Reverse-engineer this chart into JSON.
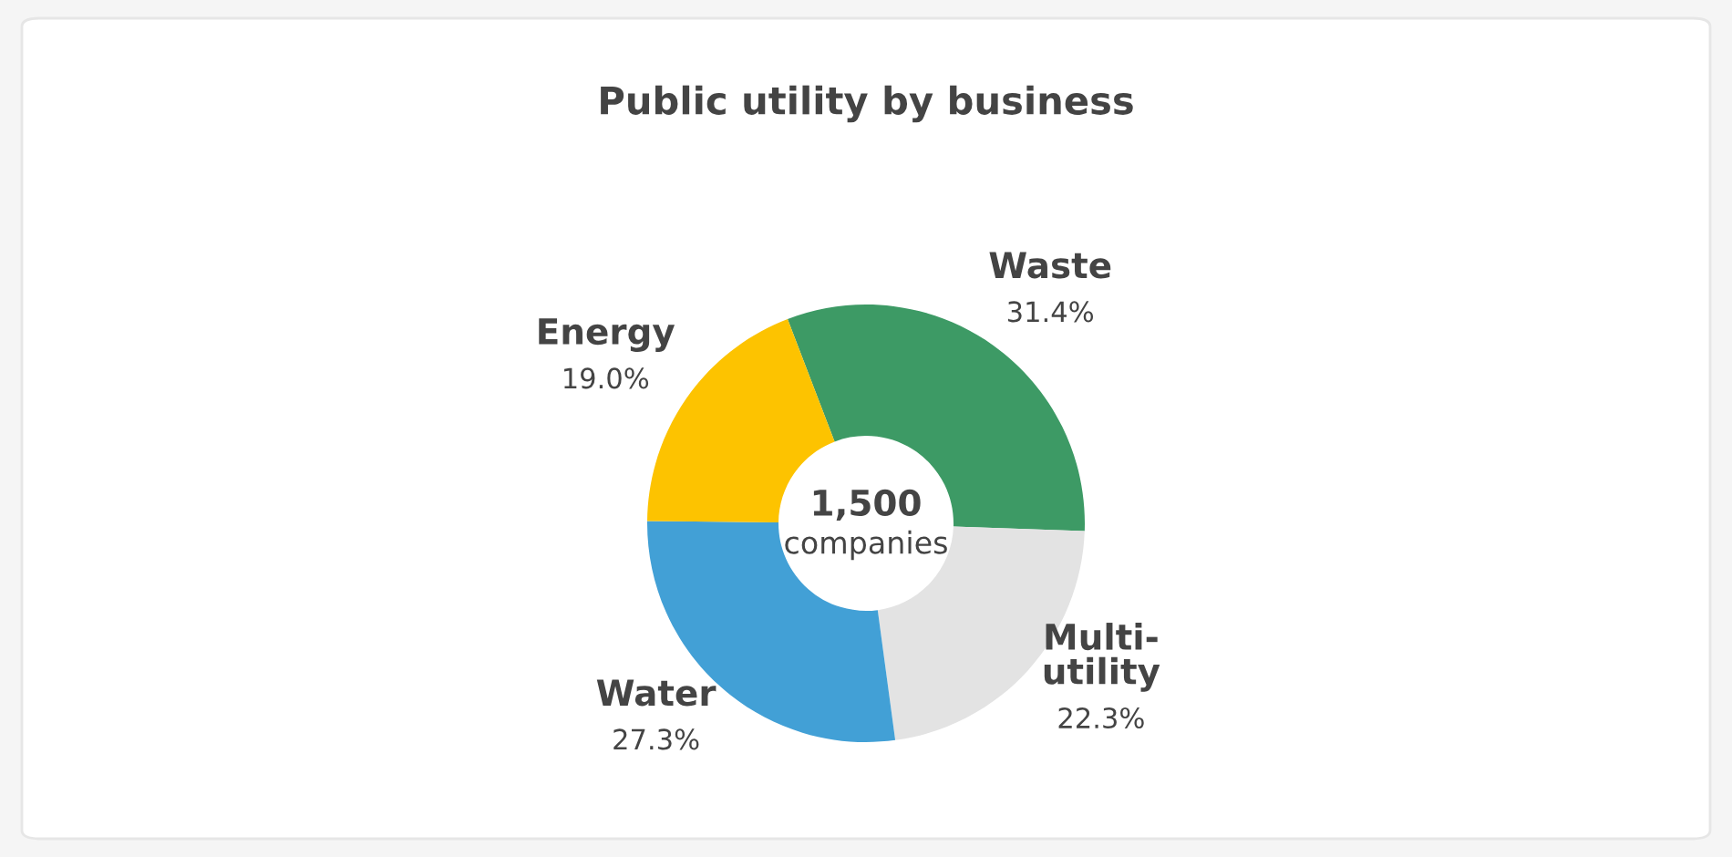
{
  "chart_data": {
    "type": "donut",
    "title": "Public utility by business",
    "categories": [
      "Waste",
      "Multi-\nutility",
      "Water",
      "Energy"
    ],
    "values": [
      31.4,
      22.3,
      27.3,
      19.0
    ],
    "value_labels": [
      "31.4%",
      "22.3%",
      "27.3%",
      "19.0%"
    ],
    "colors": [
      "#3d9a65",
      "#e3e3e3",
      "#42a0d6",
      "#fdc300"
    ],
    "annotations": [
      "1,500",
      "companies"
    ],
    "legend": false
  }
}
